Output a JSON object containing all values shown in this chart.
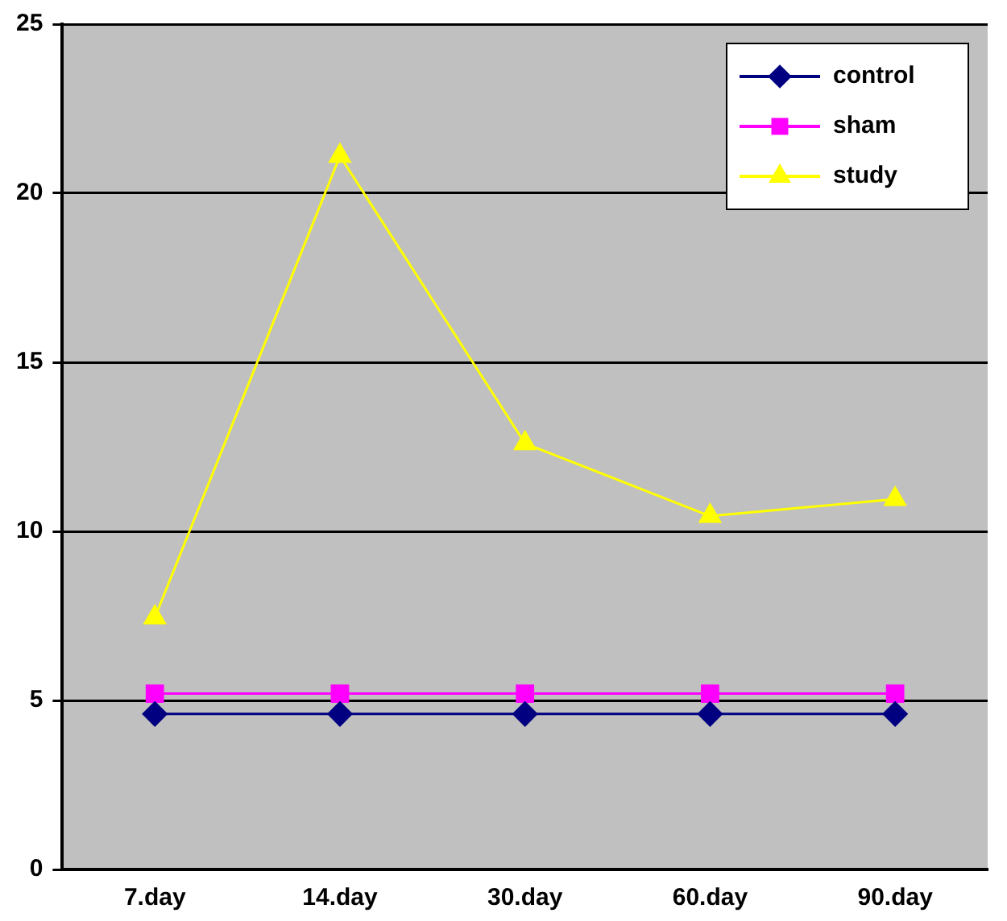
{
  "chart_data": {
    "type": "line",
    "categories": [
      "7.day",
      "14.day",
      "30.day",
      "60.day",
      "90.day"
    ],
    "series": [
      {
        "name": "control",
        "color": "#000080",
        "marker": "diamond",
        "values": [
          4.6,
          4.6,
          4.6,
          4.6,
          4.6
        ]
      },
      {
        "name": "sham",
        "color": "#ff00ff",
        "marker": "square",
        "values": [
          5.2,
          5.2,
          5.2,
          5.2,
          5.2
        ]
      },
      {
        "name": "study",
        "color": "#ffff00",
        "marker": "triangle",
        "values": [
          7.45,
          21.1,
          12.6,
          10.45,
          10.95
        ]
      }
    ],
    "ylim": [
      0,
      25
    ],
    "yticks": [
      0,
      5,
      10,
      15,
      20,
      25
    ],
    "grid": "y",
    "legend": "top right"
  }
}
